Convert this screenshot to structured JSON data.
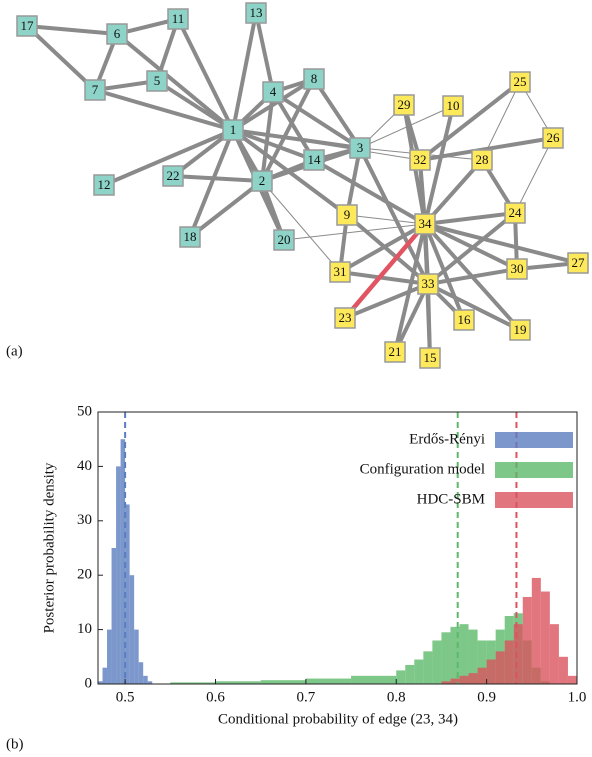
{
  "network": {
    "panel_label": "(a)",
    "nodes": [
      {
        "label": "1",
        "color": "#8dd3c7"
      },
      {
        "label": "2",
        "color": "#8dd3c7"
      },
      {
        "label": "3",
        "color": "#8dd3c7"
      },
      {
        "label": "4",
        "color": "#8dd3c7"
      },
      {
        "label": "5",
        "color": "#8dd3c7"
      },
      {
        "label": "6",
        "color": "#8dd3c7"
      },
      {
        "label": "7",
        "color": "#8dd3c7"
      },
      {
        "label": "8",
        "color": "#8dd3c7"
      },
      {
        "label": "9",
        "color": "#fde95a"
      },
      {
        "label": "10",
        "color": "#fde95a"
      },
      {
        "label": "11",
        "color": "#8dd3c7"
      },
      {
        "label": "12",
        "color": "#8dd3c7"
      },
      {
        "label": "13",
        "color": "#8dd3c7"
      },
      {
        "label": "14",
        "color": "#8dd3c7"
      },
      {
        "label": "15",
        "color": "#fde95a"
      },
      {
        "label": "16",
        "color": "#fde95a"
      },
      {
        "label": "17",
        "color": "#8dd3c7"
      },
      {
        "label": "18",
        "color": "#8dd3c7"
      },
      {
        "label": "19",
        "color": "#fde95a"
      },
      {
        "label": "20",
        "color": "#8dd3c7"
      },
      {
        "label": "21",
        "color": "#fde95a"
      },
      {
        "label": "22",
        "color": "#8dd3c7"
      },
      {
        "label": "23",
        "color": "#fde95a"
      },
      {
        "label": "24",
        "color": "#fde95a"
      },
      {
        "label": "25",
        "color": "#fde95a"
      },
      {
        "label": "26",
        "color": "#fde95a"
      },
      {
        "label": "27",
        "color": "#fde95a"
      },
      {
        "label": "28",
        "color": "#fde95a"
      },
      {
        "label": "29",
        "color": "#fde95a"
      },
      {
        "label": "30",
        "color": "#fde95a"
      },
      {
        "label": "31",
        "color": "#fde95a"
      },
      {
        "label": "32",
        "color": "#fde95a"
      },
      {
        "label": "33",
        "color": "#fde95a"
      },
      {
        "label": "34",
        "color": "#fde95a"
      }
    ],
    "highlight_color": "#e05561"
  },
  "chart_data": {
    "type": "histogram",
    "panel_label": "(b)",
    "x_label": "Conditional probability of edge (23, 34)",
    "y_label": "Posterior probability density",
    "xlim": [
      0.47,
      1.0
    ],
    "ylim": [
      0,
      50
    ],
    "xticks": [
      0.5,
      0.6,
      0.7,
      0.8,
      0.9,
      {
        "value": 1.0,
        "label": "1.0"
      }
    ],
    "yticks": [
      0,
      10,
      20,
      30,
      40,
      50
    ],
    "legend": "upper right",
    "series": [
      {
        "name": "Erdős-Rényi",
        "color": "#5a7dbf",
        "mean": 0.5,
        "bins": [
          0.47,
          0.475,
          0.48,
          0.485,
          0.49,
          0.495,
          0.5,
          0.505,
          0.51,
          0.515,
          0.52,
          0.525,
          0.53
        ],
        "values": [
          0.5,
          3,
          10,
          25,
          40,
          45,
          33,
          20,
          10,
          4,
          1.5,
          0.5
        ]
      },
      {
        "name": "Configuration model",
        "color": "#5cb96a",
        "mean": 0.868,
        "bins": [
          0.55,
          0.6,
          0.65,
          0.7,
          0.75,
          0.8,
          0.81,
          0.82,
          0.83,
          0.84,
          0.85,
          0.86,
          0.87,
          0.88,
          0.89,
          0.9,
          0.91,
          0.92,
          0.93,
          0.94,
          0.95,
          0.96,
          0.97
        ],
        "values": [
          0.3,
          0.5,
          0.7,
          1,
          1.5,
          2.5,
          3.5,
          4.5,
          6,
          8,
          9.5,
          10.5,
          11,
          10,
          8,
          8,
          10,
          12.5,
          13,
          8,
          3,
          0.5
        ]
      },
      {
        "name": "HDC-SBM",
        "color": "#d9545f",
        "mean": 0.933,
        "bins": [
          0.85,
          0.86,
          0.87,
          0.88,
          0.89,
          0.9,
          0.91,
          0.92,
          0.93,
          0.94,
          0.95,
          0.96,
          0.97,
          0.98,
          0.99,
          1.0
        ],
        "values": [
          0.5,
          1,
          1.5,
          2,
          3,
          4.5,
          6,
          8,
          11,
          16,
          19.5,
          17,
          11,
          5,
          1.5
        ]
      }
    ]
  }
}
